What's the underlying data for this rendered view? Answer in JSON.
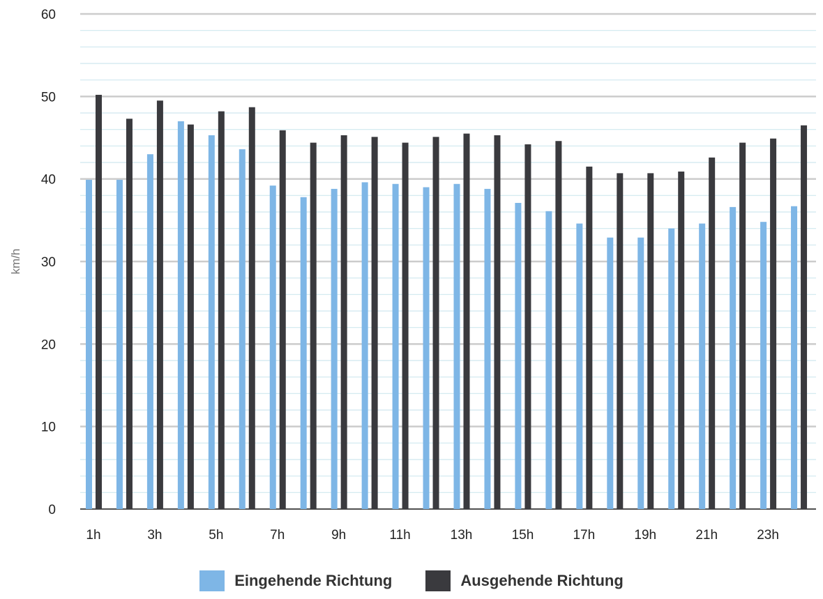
{
  "chart_data": {
    "type": "bar",
    "ylabel": "km/h",
    "ylim": [
      0,
      60
    ],
    "yticks": [
      0,
      10,
      20,
      30,
      40,
      50,
      60
    ],
    "grid": true,
    "legend_position": "bottom",
    "categories": [
      "1h",
      "2h",
      "3h",
      "4h",
      "5h",
      "6h",
      "7h",
      "8h",
      "9h",
      "10h",
      "11h",
      "12h",
      "13h",
      "14h",
      "15h",
      "16h",
      "17h",
      "18h",
      "19h",
      "20h",
      "21h",
      "22h",
      "23h",
      "24h"
    ],
    "category_labels": [
      "1h",
      "",
      "3h",
      "",
      "5h",
      "",
      "7h",
      "",
      "9h",
      "",
      "11h",
      "",
      "13h",
      "",
      "15h",
      "",
      "17h",
      "",
      "19h",
      "",
      "21h",
      "",
      "23h",
      ""
    ],
    "series": [
      {
        "name": "Eingehende Richtung",
        "color": "#7eb6e6",
        "values": [
          39.9,
          39.9,
          43.0,
          47.0,
          45.3,
          43.6,
          39.2,
          37.8,
          38.8,
          39.6,
          39.4,
          39.0,
          39.4,
          38.8,
          37.1,
          36.1,
          34.6,
          32.9,
          32.9,
          34.0,
          34.6,
          36.6,
          34.8,
          36.7
        ]
      },
      {
        "name": "Ausgehende Richtung",
        "color": "#3a3a3e",
        "values": [
          50.2,
          47.3,
          49.5,
          46.6,
          48.2,
          48.7,
          45.9,
          44.4,
          45.3,
          45.1,
          44.4,
          45.1,
          45.5,
          45.3,
          44.2,
          44.6,
          41.5,
          40.7,
          40.7,
          40.9,
          42.6,
          44.4,
          44.9,
          46.5
        ]
      }
    ]
  },
  "colors": {
    "major_grid": "#cccccc",
    "minor_grid": "#cfe8ef",
    "axis": "#555555"
  }
}
